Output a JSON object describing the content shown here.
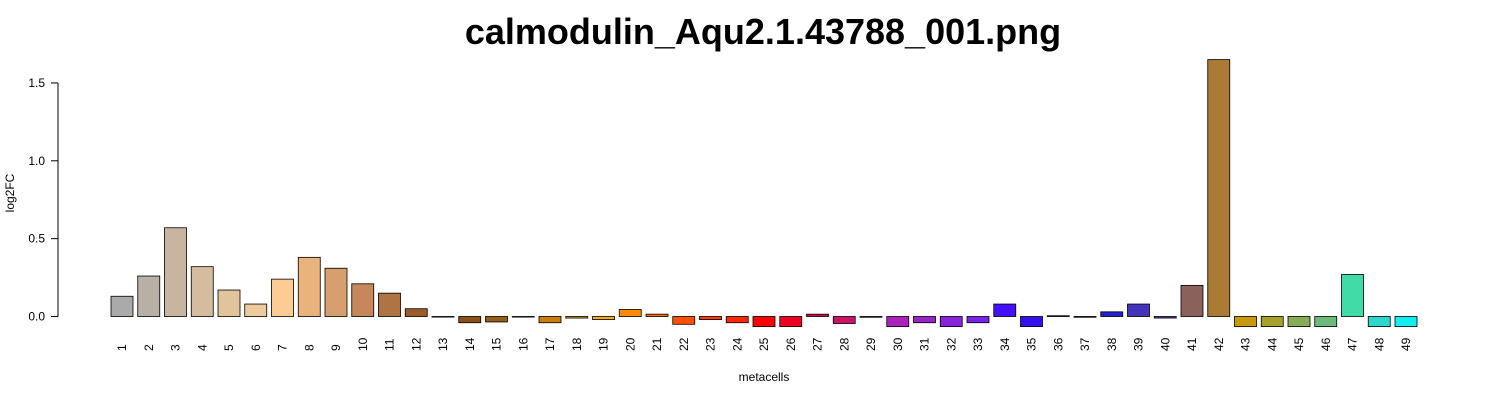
{
  "chart_data": {
    "type": "bar",
    "title": "calmodulin_Aqu2.1.43788_001.png",
    "xlabel": "metacells",
    "ylabel": "log2FC",
    "ylim": [
      -0.06,
      1.65
    ],
    "yticks": [
      0.0,
      0.5,
      1.0,
      1.5
    ],
    "ytick_labels": [
      "0.0",
      "0.5",
      "1.0",
      "1.5"
    ],
    "grid": false,
    "legend": "none",
    "categories": [
      "1",
      "2",
      "3",
      "4",
      "5",
      "6",
      "7",
      "8",
      "9",
      "10",
      "11",
      "12",
      "13",
      "14",
      "15",
      "16",
      "17",
      "18",
      "19",
      "20",
      "21",
      "22",
      "23",
      "24",
      "25",
      "26",
      "27",
      "28",
      "29",
      "30",
      "31",
      "32",
      "33",
      "34",
      "35",
      "36",
      "37",
      "38",
      "39",
      "40",
      "41",
      "42",
      "43",
      "44",
      "45",
      "46",
      "47",
      "48",
      "49"
    ],
    "values": [
      0.13,
      0.26,
      0.57,
      0.32,
      0.17,
      0.08,
      0.24,
      0.38,
      0.31,
      0.21,
      0.15,
      0.05,
      0.0,
      -0.04,
      -0.035,
      0.0,
      -0.04,
      -0.01,
      -0.02,
      0.045,
      0.015,
      -0.05,
      -0.02,
      -0.04,
      -0.065,
      -0.065,
      0.015,
      -0.045,
      -0.005,
      -0.065,
      -0.04,
      -0.065,
      -0.04,
      0.08,
      -0.065,
      0.005,
      -0.005,
      0.03,
      0.08,
      -0.01,
      0.2,
      1.65,
      -0.065,
      -0.065,
      -0.065,
      -0.065,
      0.27,
      -0.065,
      -0.065
    ],
    "colors": [
      "#aaaaaa",
      "#b8b0a4",
      "#c7b5a0",
      "#d5bc9e",
      "#e2c49c",
      "#eecb9b",
      "#fdcc95",
      "#e8b47c",
      "#d79f6d",
      "#c6875a",
      "#b07344",
      "#9c5c2a",
      "#8d4c1f",
      "#8c5019",
      "#965f16",
      "#a56e13",
      "#cc7d0a",
      "#e0a020",
      "#f5ae1a",
      "#ff8c00",
      "#ff6e00",
      "#ff5000",
      "#ff3c00",
      "#ff2800",
      "#ff0000",
      "#ee0022",
      "#dd0044",
      "#cc1166",
      "#bb2288",
      "#aa22bb",
      "#9922cc",
      "#8822dd",
      "#7722ee",
      "#4411ff",
      "#3311ee",
      "#3322dd",
      "#3333cc",
      "#2222cc",
      "#4433bb",
      "#5544aa",
      "#8b625b",
      "#a97b34",
      "#c8980d",
      "#a6a12a",
      "#86ae56",
      "#6cb97b",
      "#40dba6",
      "#2ad8cc",
      "#11eeee"
    ]
  }
}
